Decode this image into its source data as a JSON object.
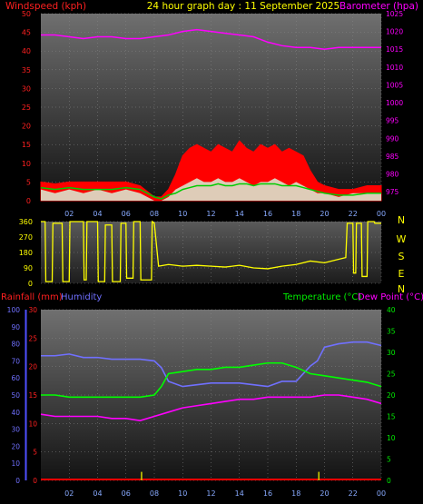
{
  "header": {
    "title": "24 hour graph day : 11 September 2025",
    "left_label": "Windspeed (kph)",
    "right_label": "Barometer (hpa)"
  },
  "colors": {
    "wind": "#ff0000",
    "gust": "#d8f0d8",
    "avg": "#00cc00",
    "barometer": "#ff00ff",
    "direction": "#ffff00",
    "rain": "#ff0000",
    "humidity": "#7070ff",
    "temperature": "#00ff00",
    "dewpoint": "#ff00ff",
    "rainfall_label": "#ff2020",
    "humidity_label": "#7070ff",
    "temperature_label": "#00ee00",
    "dewpoint_label": "#ff00ff"
  },
  "chart_data": [
    {
      "type": "line",
      "panel": "wind-barometer",
      "ylabel": "Windspeed (kph)",
      "ylabel_right": "Barometer (hpa)",
      "ylim": [
        0,
        50
      ],
      "ylim_right": [
        972.5,
        1025
      ],
      "y_ticks": [
        "0",
        "5",
        "10",
        "15",
        "20",
        "25",
        "30",
        "35",
        "40",
        "45",
        "50"
      ],
      "y_ticks_right": [
        "975",
        "980",
        "985",
        "990",
        "995",
        "1000",
        "1005",
        "1010",
        "1015",
        "1020",
        "1025"
      ],
      "x_ticks": [
        "02",
        "04",
        "06",
        "08",
        "10",
        "12",
        "14",
        "16",
        "18",
        "20",
        "22",
        "00"
      ],
      "x_tick_values": [
        2,
        4,
        6,
        8,
        10,
        12,
        14,
        16,
        18,
        20,
        22,
        24
      ],
      "xlim": [
        0,
        24
      ],
      "series": [
        {
          "key": "windspeed",
          "x": [
            0,
            1,
            2,
            3,
            4,
            5,
            6,
            7,
            8,
            8.5,
            9,
            9.5,
            10,
            10.5,
            11,
            11.5,
            12,
            12.5,
            13,
            13.5,
            14,
            14.5,
            15,
            15.5,
            16,
            16.5,
            17,
            17.5,
            18,
            18.5,
            19,
            19.5,
            20,
            21,
            22,
            23,
            24
          ],
          "values": [
            5,
            4.5,
            5,
            5,
            5,
            5,
            5,
            4,
            1,
            1,
            3,
            7,
            12,
            14,
            15,
            14,
            13,
            15,
            14,
            13,
            16,
            14,
            13,
            15,
            14,
            15,
            13,
            14,
            13,
            12,
            8,
            5,
            4,
            3,
            3,
            4,
            4
          ]
        },
        {
          "key": "gust",
          "x": [
            0,
            1,
            2,
            3,
            4,
            5,
            6,
            7,
            8,
            8.5,
            9,
            9.5,
            10,
            10.5,
            11,
            11.5,
            12,
            12.5,
            13,
            13.5,
            14,
            14.5,
            15,
            15.5,
            16,
            16.5,
            17,
            17.5,
            18,
            18.5,
            19,
            19.5,
            20,
            21,
            22,
            23,
            24
          ],
          "values": [
            3,
            2,
            3,
            2,
            3,
            2,
            3,
            2,
            0,
            0,
            1,
            3,
            4,
            5,
            6,
            5,
            5,
            6,
            5,
            5,
            6,
            5,
            4,
            5,
            5,
            6,
            5,
            4,
            5,
            4,
            3,
            2,
            2,
            1,
            2,
            2,
            2
          ]
        },
        {
          "key": "average",
          "x": [
            0,
            1,
            2,
            3,
            4,
            5,
            6,
            7,
            8,
            8.5,
            9,
            9.5,
            10,
            10.5,
            11,
            11.5,
            12,
            12.5,
            13,
            13.5,
            14,
            14.5,
            15,
            15.5,
            16,
            16.5,
            17,
            17.5,
            18,
            18.5,
            19,
            19.5,
            20,
            21,
            22,
            23,
            24
          ],
          "values": [
            3.5,
            3,
            3.5,
            3,
            3,
            3,
            3.5,
            3,
            1,
            0.5,
            1.5,
            2,
            3,
            3.5,
            4,
            4,
            4,
            4.5,
            4,
            4,
            4.5,
            4.5,
            4,
            4.5,
            4.5,
            4.5,
            4,
            4,
            4,
            3.5,
            3,
            2.5,
            2,
            1.5,
            1.5,
            2,
            2
          ]
        },
        {
          "key": "barometer",
          "x": [
            0,
            1,
            2,
            3,
            4,
            5,
            6,
            7,
            8,
            9,
            10,
            11,
            12,
            13,
            14,
            15,
            16,
            17,
            18,
            19,
            20,
            21,
            22,
            23,
            24
          ],
          "values": [
            1019,
            1019,
            1018.5,
            1018,
            1018.5,
            1018.5,
            1018,
            1018,
            1018.5,
            1019,
            1020,
            1020.5,
            1020,
            1019.5,
            1019,
            1018.5,
            1017,
            1016,
            1015.5,
            1015.5,
            1015,
            1015.5,
            1015.5,
            1015.5,
            1015.5
          ]
        }
      ]
    },
    {
      "type": "line",
      "panel": "wind-direction",
      "ylim": [
        0,
        360
      ],
      "y_ticks": [
        "0",
        "90",
        "180",
        "270",
        "360"
      ],
      "compass_labels": [
        "N",
        "W",
        "S",
        "E",
        "N"
      ],
      "x_ticks": [
        "02",
        "04",
        "06",
        "08",
        "10",
        "12",
        "14",
        "16",
        "18",
        "20",
        "22",
        "00"
      ],
      "x_tick_values": [
        2,
        4,
        6,
        8,
        10,
        12,
        14,
        16,
        18,
        20,
        22,
        24
      ],
      "xlim": [
        0,
        24
      ],
      "series": [
        {
          "key": "direction",
          "x": [
            0,
            0.3,
            0.35,
            0.8,
            0.85,
            1.5,
            1.55,
            2,
            2.05,
            3,
            3.05,
            3.2,
            3.25,
            4,
            4.05,
            4.5,
            4.55,
            5,
            5.05,
            5.6,
            5.65,
            6,
            6.05,
            6.5,
            6.55,
            7,
            7.05,
            7.8,
            7.85,
            8,
            8.3,
            9,
            10,
            11,
            12,
            13,
            14,
            15,
            16,
            17,
            18,
            19,
            20,
            21,
            21.5,
            21.6,
            22,
            22.05,
            22.2,
            22.25,
            22.6,
            22.65,
            23,
            23.05,
            23.5,
            23.55,
            24
          ],
          "values": [
            360,
            360,
            10,
            10,
            350,
            350,
            10,
            10,
            360,
            360,
            20,
            20,
            360,
            360,
            10,
            10,
            340,
            340,
            10,
            10,
            350,
            350,
            30,
            30,
            360,
            360,
            20,
            20,
            360,
            350,
            100,
            110,
            100,
            105,
            100,
            95,
            105,
            90,
            85,
            100,
            110,
            130,
            120,
            140,
            150,
            350,
            350,
            60,
            60,
            350,
            350,
            40,
            40,
            360,
            360,
            350,
            350
          ]
        }
      ]
    },
    {
      "type": "line",
      "panel": "temp-humidity-rain",
      "ylabel_left_outer": "Humidity",
      "ylabel_left_inner": "Rainfall (mm)",
      "ylabel_right_a": "Temperature (°C)",
      "ylabel_right_b": "Dew Point (°C)",
      "ylim_humidity": [
        0,
        100
      ],
      "ylim_rain": [
        0,
        30
      ],
      "ylim_temp": [
        0,
        40
      ],
      "y_ticks_humidity": [
        "0",
        "10",
        "20",
        "30",
        "40",
        "50",
        "60",
        "70",
        "80",
        "90",
        "100"
      ],
      "y_ticks_rain": [
        "0",
        "5",
        "10",
        "15",
        "20",
        "25",
        "30"
      ],
      "y_ticks_temp": [
        "0",
        "5",
        "10",
        "15",
        "20",
        "25",
        "30",
        "35",
        "40"
      ],
      "x_ticks": [
        "02",
        "04",
        "06",
        "08",
        "10",
        "12",
        "14",
        "16",
        "18",
        "20",
        "22",
        "00"
      ],
      "x_tick_values": [
        2,
        4,
        6,
        8,
        10,
        12,
        14,
        16,
        18,
        20,
        22,
        24
      ],
      "xlim": [
        0,
        24
      ],
      "series": [
        {
          "key": "humidity",
          "x": [
            0,
            1,
            2,
            3,
            4,
            5,
            6,
            7,
            8,
            8.5,
            9,
            10,
            11,
            12,
            13,
            14,
            15,
            16,
            17,
            17.5,
            18,
            19,
            19.5,
            20,
            21,
            22,
            23,
            24
          ],
          "values": [
            73,
            73,
            74,
            72,
            72,
            71,
            71,
            71,
            70,
            66,
            58,
            55,
            56,
            57,
            57,
            57,
            56,
            55,
            58,
            58,
            58,
            67,
            70,
            78,
            80,
            81,
            81,
            79
          ]
        },
        {
          "key": "temperature",
          "x": [
            0,
            1,
            2,
            3,
            4,
            5,
            6,
            7,
            8,
            8.5,
            9,
            10,
            11,
            12,
            13,
            14,
            15,
            16,
            17,
            17.5,
            18,
            19,
            20,
            21,
            22,
            23,
            24
          ],
          "values": [
            20,
            20,
            19.5,
            19.5,
            19.5,
            19.5,
            19.5,
            19.5,
            20,
            22,
            25,
            25.5,
            26,
            26,
            26.5,
            26.5,
            27,
            27.5,
            27.5,
            27,
            26.5,
            25,
            24.5,
            24,
            23.5,
            23,
            22
          ]
        },
        {
          "key": "dewpoint",
          "x": [
            0,
            1,
            2,
            3,
            4,
            5,
            6,
            7,
            8,
            9,
            10,
            11,
            12,
            13,
            14,
            15,
            16,
            17,
            18,
            19,
            20,
            21,
            22,
            23,
            24
          ],
          "values": [
            15.5,
            15,
            15,
            15,
            15,
            14.5,
            14.5,
            14,
            15,
            16,
            17,
            17.5,
            18,
            18.5,
            19,
            19,
            19.5,
            19.5,
            19.5,
            19.5,
            20,
            20,
            19.5,
            19,
            18
          ]
        },
        {
          "key": "rain",
          "x": [
            7.1,
            19.6
          ],
          "values": [
            1.5,
            1.5
          ]
        }
      ]
    }
  ]
}
